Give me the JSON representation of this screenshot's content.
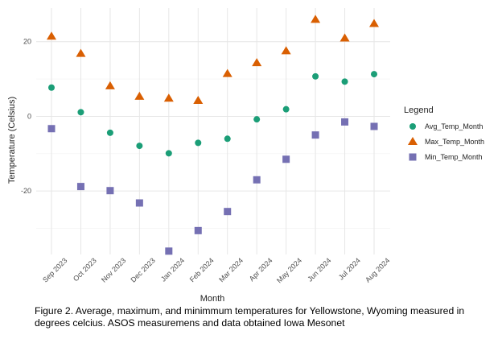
{
  "chart_data": {
    "type": "scatter",
    "ylabel": "Temperature (Celsius)",
    "xlabel": "Month",
    "categories": [
      "Sep 2023",
      "Oct 2023",
      "Nov 2023",
      "Dec 2023",
      "Jan 2024",
      "Feb 2024",
      "Mar 2024",
      "Apr 2024",
      "May 2024",
      "Jun 2024",
      "Jul 2024",
      "Aug 2024"
    ],
    "ylim": [
      -37,
      29
    ],
    "yticks": [
      -20,
      0,
      20
    ],
    "grid": true,
    "legend_title": "Legend",
    "legend_position": "right",
    "series": [
      {
        "name": "Avg_Temp_Month",
        "marker": "circle",
        "color": "#1b9e77",
        "values": [
          7.7,
          1.1,
          -4.4,
          -7.9,
          -9.9,
          -7.1,
          -6.0,
          -0.8,
          1.9,
          10.7,
          9.3,
          11.3
        ]
      },
      {
        "name": "Max_Temp_Month",
        "marker": "triangle",
        "color": "#d95f02",
        "values": [
          21.4,
          16.8,
          8.1,
          5.3,
          4.8,
          4.2,
          11.4,
          14.3,
          17.5,
          25.9,
          20.9,
          24.8
        ]
      },
      {
        "name": "Min_Temp_Month",
        "marker": "square",
        "color": "#7570b3",
        "values": [
          -3.3,
          -18.8,
          -19.9,
          -23.2,
          -36.1,
          -30.6,
          -25.5,
          -17.0,
          -11.5,
          -5.0,
          -1.5,
          -2.7
        ]
      }
    ]
  },
  "caption": "Figure 2. Average, maximum, and minimmum temperatures for Yellowstone, Wyoming measured in degrees celcius. ASOS measuremens and data obtained Iowa Mesonet"
}
